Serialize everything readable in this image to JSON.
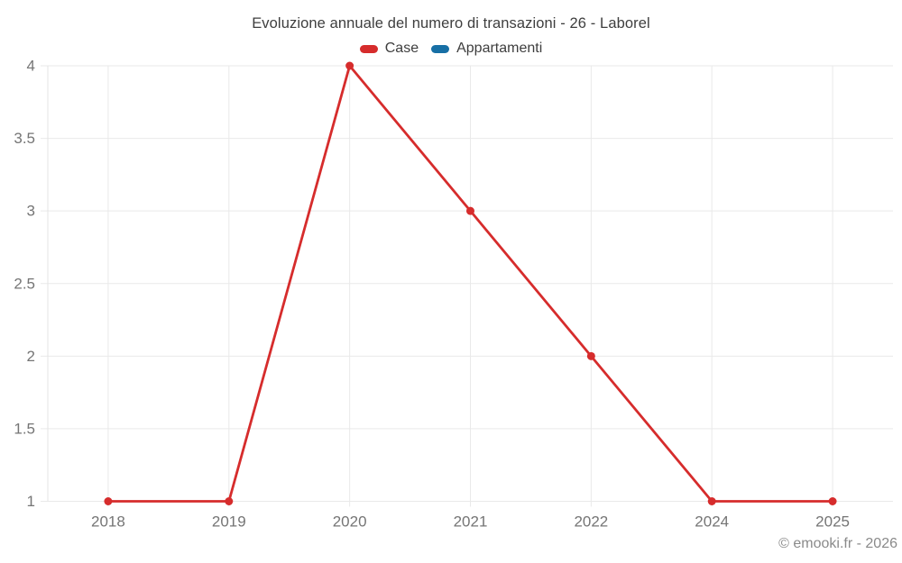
{
  "chart_data": {
    "type": "line",
    "title": "Evoluzione annuale del numero di transazioni - 26 - Laborel",
    "categories": [
      "2018",
      "2019",
      "2020",
      "2021",
      "2022",
      "2024",
      "2025"
    ],
    "series": [
      {
        "name": "Case",
        "color": "#d62c2c",
        "values": [
          1,
          1,
          4,
          3,
          2,
          1,
          1
        ]
      },
      {
        "name": "Appartamenti",
        "color": "#176fa5",
        "values": []
      }
    ],
    "xlabel": "",
    "ylabel": "",
    "ylim": [
      1,
      4
    ],
    "y_ticks": [
      1,
      1.5,
      2,
      2.5,
      3,
      3.5,
      4
    ],
    "grid": true,
    "legend_position": "top-center",
    "marker": "circle"
  },
  "footer": {
    "copyright": "© emooki.fr - 2026"
  },
  "colors": {
    "background": "#ffffff",
    "grid": "#e9e9e9",
    "axis_line": "#e4e4e4",
    "tick_text": "#757575",
    "title_text": "#3e3e3e",
    "copyright_text": "#8a8a8a"
  }
}
